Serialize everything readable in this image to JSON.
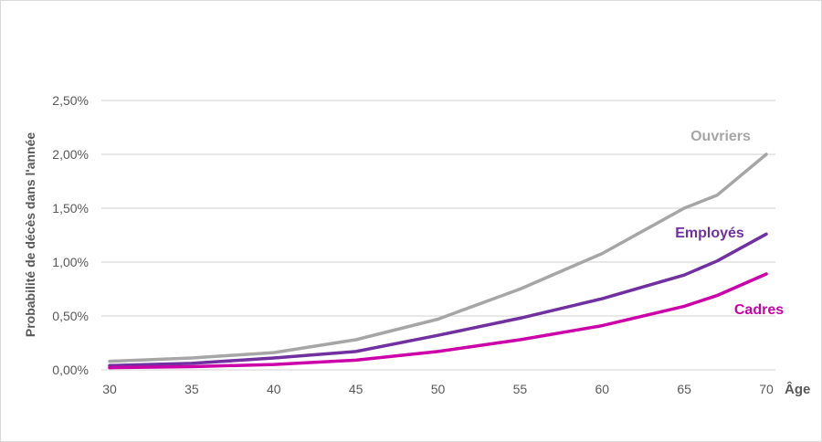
{
  "chart_data": {
    "type": "line",
    "title": "",
    "xlabel": "Âge",
    "ylabel": "Probabilité de décès dans l'année",
    "xlim": [
      30,
      70
    ],
    "ylim": [
      0,
      2.5
    ],
    "x_ticks": [
      "30",
      "35",
      "40",
      "45",
      "50",
      "55",
      "60",
      "65",
      "70"
    ],
    "y_ticks": [
      "0,00%",
      "0,50%",
      "1,00%",
      "1,50%",
      "2,00%",
      "2,50%"
    ],
    "grid": "horizontal",
    "x": [
      30,
      35,
      40,
      45,
      50,
      55,
      60,
      65,
      67,
      70
    ],
    "series": [
      {
        "name": "Ouvriers",
        "color": "#a6a6a6",
        "values": [
          0.08,
          0.11,
          0.16,
          0.28,
          0.47,
          0.75,
          1.08,
          1.5,
          1.62,
          2.0
        ]
      },
      {
        "name": "Employés",
        "color": "#7030a0",
        "values": [
          0.04,
          0.06,
          0.11,
          0.17,
          0.32,
          0.48,
          0.66,
          0.88,
          1.01,
          1.26
        ]
      },
      {
        "name": "Cadres",
        "color": "#cc00a8",
        "values": [
          0.02,
          0.03,
          0.05,
          0.09,
          0.17,
          0.28,
          0.41,
          0.59,
          0.69,
          0.89
        ]
      }
    ]
  }
}
